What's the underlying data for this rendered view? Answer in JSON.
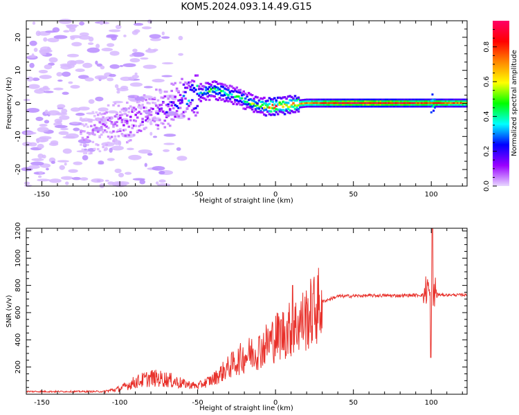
{
  "title": "KOM5.2024.093.14.49.G15",
  "chart_data": [
    {
      "type": "heatmap",
      "xlabel": "Height of straight line (km)",
      "ylabel": "Frequency (Hz)",
      "xlim": [
        -160,
        123
      ],
      "ylim": [
        -25,
        25
      ],
      "xticks": [
        -150,
        -100,
        -50,
        0,
        50,
        100
      ],
      "yticks": [
        -20,
        -10,
        0,
        10,
        20
      ],
      "colorbar": {
        "label": "Normalized spectral amplitude",
        "range": [
          0.0,
          0.95
        ],
        "ticks": [
          0.0,
          0.2,
          0.4,
          0.6,
          0.8
        ],
        "colors": [
          "#e8d8ff",
          "#9900ff",
          "#0000ff",
          "#00ffff",
          "#00ff00",
          "#ffff00",
          "#ff8800",
          "#ff0000",
          "#ff0066"
        ]
      },
      "ridge": {
        "x": [
          -120,
          -100,
          -80,
          -60,
          -50,
          -40,
          -30,
          -20,
          -10,
          0,
          10,
          20,
          40,
          60,
          80,
          100,
          123
        ],
        "freq": [
          -9,
          -6,
          -3,
          1,
          3,
          4,
          3,
          1,
          -1,
          -1,
          -0.5,
          0,
          0,
          0,
          0,
          0,
          0
        ],
        "amplitude": [
          0.05,
          0.1,
          0.1,
          0.2,
          0.35,
          0.45,
          0.4,
          0.4,
          0.55,
          0.75,
          0.65,
          0.7,
          0.85,
          0.9,
          0.85,
          0.8,
          0.75
        ]
      }
    },
    {
      "type": "line",
      "xlabel": "Height of straight line (km)",
      "ylabel": "SNR (v/v)",
      "xlim": [
        -160,
        123
      ],
      "ylim": [
        0,
        1220
      ],
      "xticks": [
        -150,
        -100,
        -50,
        0,
        50,
        100
      ],
      "yticks": [
        200,
        400,
        600,
        800,
        1000,
        1200
      ],
      "color": "#e8302a",
      "trend": {
        "x": [
          -160,
          -110,
          -100,
          -90,
          -80,
          -70,
          -60,
          -50,
          -40,
          -30,
          -20,
          -10,
          0,
          10,
          20,
          30,
          40,
          60,
          80,
          95,
          98,
          100,
          102,
          105,
          123
        ],
        "y": [
          20,
          20,
          40,
          90,
          120,
          110,
          80,
          60,
          110,
          200,
          280,
          330,
          420,
          480,
          560,
          680,
          720,
          725,
          725,
          730,
          800,
          600,
          760,
          730,
          730
        ]
      },
      "events": [
        {
          "x": 100.7,
          "y": 1220
        },
        {
          "x": 99.8,
          "y": 270
        },
        {
          "x": 11,
          "y": 800
        }
      ]
    }
  ]
}
